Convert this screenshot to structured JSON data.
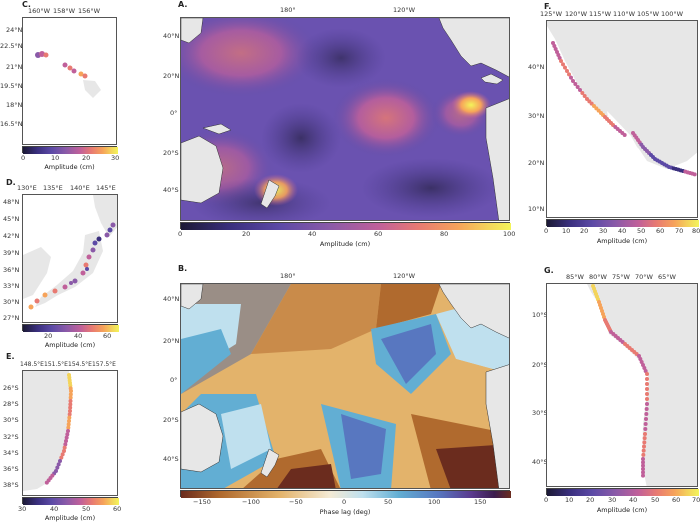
{
  "colors": {
    "land": "#e7e7e7",
    "coast": "#333333",
    "cbar_amp": [
      "#1c1a35",
      "#3a2f7e",
      "#5c4aa6",
      "#8a5aa8",
      "#c0609a",
      "#e87a72",
      "#f6a35a",
      "#f3d45b",
      "#f3f45a"
    ],
    "cbar_phase": [
      "#6b2c1e",
      "#b06a2e",
      "#e3b36b",
      "#f4ead4",
      "#bfe0ee",
      "#62aed3",
      "#5877c0",
      "#5a3a8e",
      "#3c1d4e",
      "#6b2c1e"
    ]
  },
  "panels": {
    "A": {
      "label": "A.",
      "top_ticks": [
        "180°",
        "120°W"
      ],
      "left_ticks": [
        "40°N",
        "20°N",
        "0°",
        "20°S",
        "40°S"
      ],
      "cbar_ticks": [
        "0",
        "20",
        "40",
        "60",
        "80",
        "100"
      ],
      "cbar_title": "Amplitude (cm)"
    },
    "B": {
      "label": "B.",
      "top_ticks": [
        "180°",
        "120°W"
      ],
      "left_ticks": [
        "40°N",
        "20°N",
        "0°",
        "20°S",
        "40°S"
      ],
      "cbar_ticks": [
        "−150",
        "−100",
        "−50",
        "0",
        "50",
        "100",
        "150"
      ],
      "cbar_title": "Phase lag (deg)"
    },
    "C": {
      "label": "C.",
      "top_ticks": [
        "160°W",
        "158°W",
        "156°W"
      ],
      "left_ticks": [
        "24°N",
        "22.5°N",
        "21°N",
        "19.5°N",
        "18°N",
        "16.5°N"
      ],
      "cbar_ticks": [
        "0",
        "10",
        "20",
        "30"
      ],
      "cbar_title": "Amplitude (cm)"
    },
    "D": {
      "label": "D.",
      "top_ticks": [
        "130°E",
        "135°E",
        "140°E",
        "145°E"
      ],
      "left_ticks": [
        "48°N",
        "45°N",
        "42°N",
        "39°N",
        "36°N",
        "33°N",
        "30°N",
        "27°N"
      ],
      "cbar_ticks": [
        "20",
        "40",
        "60"
      ],
      "cbar_title": "Amplitude (cm)"
    },
    "E": {
      "label": "E.",
      "top_ticks": [
        "148.5°E",
        "151.5°E",
        "154.5°E",
        "157.5°E"
      ],
      "left_ticks": [
        "26°S",
        "28°S",
        "30°S",
        "32°S",
        "34°S",
        "36°S",
        "38°S"
      ],
      "cbar_ticks": [
        "30",
        "40",
        "50",
        "60"
      ],
      "cbar_title": "Amplitude (cm)"
    },
    "F": {
      "label": "F.",
      "top_ticks": [
        "125°W",
        "120°W",
        "115°W",
        "110°W",
        "105°W",
        "100°W"
      ],
      "left_ticks": [
        "40°N",
        "30°N",
        "20°N",
        "10°N"
      ],
      "cbar_ticks": [
        "0",
        "10",
        "20",
        "30",
        "40",
        "50",
        "60",
        "70",
        "80"
      ],
      "cbar_title": "Amplitude (cm)"
    },
    "G": {
      "label": "G.",
      "top_ticks": [
        "85°W",
        "80°W",
        "75°W",
        "70°W",
        "65°W"
      ],
      "left_ticks": [
        "10°S",
        "20°S",
        "30°S",
        "40°S"
      ],
      "cbar_ticks": [
        "0",
        "10",
        "20",
        "30",
        "40",
        "50",
        "60",
        "70"
      ],
      "cbar_title": "Amplitude (cm)"
    }
  }
}
